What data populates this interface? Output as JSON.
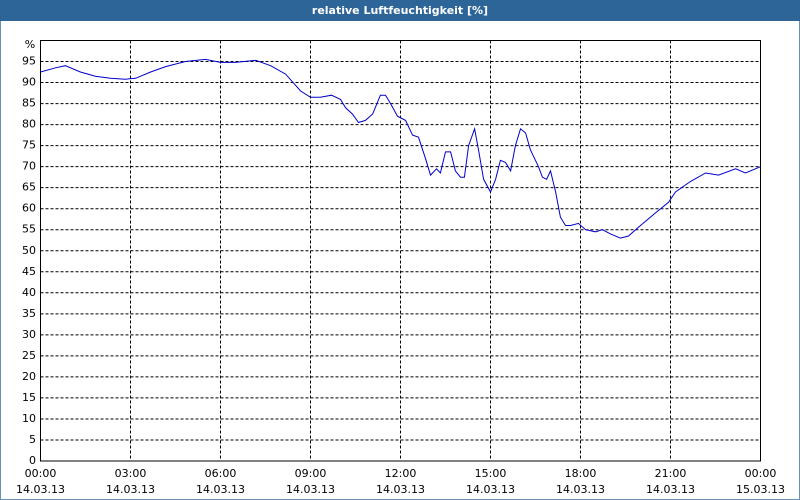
{
  "chart_data": {
    "type": "line",
    "title": "relative Luftfeuchtigkeit [%]",
    "y_unit": "%",
    "x": [
      0,
      0.5,
      0.83,
      1.33,
      1.83,
      2.33,
      2.83,
      3.17,
      3.67,
      4.17,
      4.83,
      5.5,
      6,
      6.5,
      7.17,
      7.67,
      8.17,
      8.67,
      9,
      9.33,
      9.7,
      10,
      10.17,
      10.4,
      10.6,
      10.83,
      11.07,
      11.33,
      11.5,
      11.67,
      11.9,
      12.17,
      12.4,
      12.6,
      12.83,
      13,
      13.2,
      13.33,
      13.5,
      13.67,
      13.83,
      14,
      14.13,
      14.27,
      14.47,
      14.6,
      14.77,
      15,
      15.17,
      15.33,
      15.5,
      15.67,
      15.83,
      16,
      16.17,
      16.33,
      16.6,
      16.73,
      16.87,
      17,
      17.17,
      17.33,
      17.5,
      17.67,
      17.93,
      18.17,
      18.5,
      18.73,
      19,
      19.33,
      19.6,
      20,
      20.5,
      20.93,
      21.17,
      21.67,
      22.17,
      22.6,
      23.17,
      23.5,
      24
    ],
    "series": [
      {
        "name": "relative Luftfeuchtigkeit",
        "color": "#0000cc",
        "values": [
          92.5,
          93.5,
          94,
          92.5,
          91.5,
          91,
          90.8,
          91,
          92.5,
          93.8,
          95,
          95.5,
          94.8,
          94.8,
          95.3,
          94,
          92,
          88,
          86.5,
          86.5,
          87,
          86,
          84,
          82.5,
          80.5,
          81,
          82.5,
          87,
          87,
          85,
          82,
          81,
          77.5,
          77,
          72,
          68,
          69.5,
          68.5,
          73.5,
          73.5,
          69,
          67.5,
          67.5,
          75,
          79,
          74,
          67,
          64,
          67,
          71.5,
          71,
          69,
          75,
          79,
          78,
          74,
          70,
          67.5,
          67,
          69,
          64,
          58,
          56,
          56,
          56.5,
          55,
          54.5,
          55,
          54,
          53,
          53.5,
          56,
          59,
          61.5,
          64,
          66.5,
          68.5,
          68,
          69.5,
          68.5,
          70
        ]
      }
    ],
    "xlim": [
      0,
      24
    ],
    "xticks": [
      {
        "value": 0,
        "label": "00:00"
      },
      {
        "value": 3,
        "label": "03:00"
      },
      {
        "value": 6,
        "label": "06:00"
      },
      {
        "value": 9,
        "label": "09:00"
      },
      {
        "value": 12,
        "label": "12:00"
      },
      {
        "value": 15,
        "label": "15:00"
      },
      {
        "value": 18,
        "label": "18:00"
      },
      {
        "value": 21,
        "label": "21:00"
      },
      {
        "value": 24,
        "label": "00:00"
      }
    ],
    "xtick_dates": [
      "14.03.13",
      "14.03.13",
      "14.03.13",
      "14.03.13",
      "14.03.13",
      "14.03.13",
      "14.03.13",
      "14.03.13",
      "15.03.13"
    ],
    "ylim": [
      0,
      100
    ],
    "yticks": [
      0,
      5,
      10,
      15,
      20,
      25,
      30,
      35,
      40,
      45,
      50,
      55,
      60,
      65,
      70,
      75,
      80,
      85,
      90,
      95
    ],
    "grid": true
  }
}
